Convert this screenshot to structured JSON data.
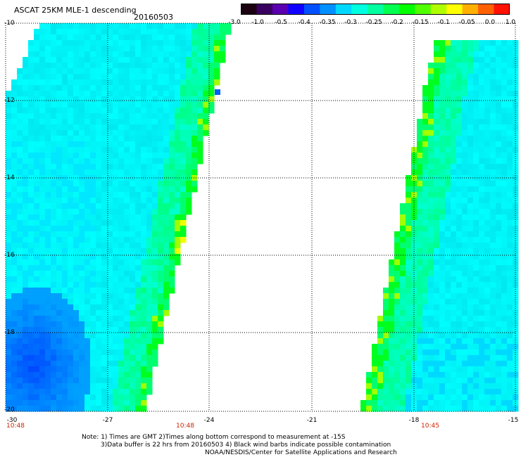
{
  "header": {
    "title": "ASCAT 25KM MLE-1 descending",
    "date": "20160503"
  },
  "colorbar": {
    "labels": [
      "-3.0",
      "-1.0",
      "-0.5",
      "-0.4",
      "-0.35",
      "-0.3",
      "-0.25",
      "-0.2",
      "-0.15",
      "-0.1",
      "-0.05",
      "0.0",
      "1.0"
    ],
    "colors": [
      "#1a0010",
      "#3a0060",
      "#5a00b0",
      "#1000ff",
      "#0050ff",
      "#0090ff",
      "#00d8ff",
      "#00ffe0",
      "#00ffa0",
      "#00ff50",
      "#00ff00",
      "#50ff00",
      "#b0ff00",
      "#ffff00",
      "#ffb000",
      "#ff6000",
      "#ff1000"
    ]
  },
  "axes": {
    "y_ticks": [
      "-10",
      "-12",
      "-14",
      "-16",
      "-18",
      "-20"
    ],
    "x_ticks": [
      "-30",
      "-27",
      "-24",
      "-21",
      "-18",
      "-15"
    ],
    "time_labels": [
      "10:48",
      "10:48",
      "10:45"
    ]
  },
  "note": {
    "line1": "Note: 1) Times are GMT 2)Times along bottom correspond to measurement at -15S",
    "line2": "3)Data buffer is 22 hrs from 20160503 4) Black wind barbs indicate possible contamination",
    "line3": "NOAA/NESDIS/Center for Satellite Applications and Research"
  },
  "swaths": [
    {
      "name": "left-swath",
      "lon_range": [
        -30,
        -24.3
      ],
      "lat_range": [
        -10,
        -20
      ]
    },
    {
      "name": "right-swath",
      "lon_range": [
        -19.2,
        -15
      ],
      "lat_range": [
        -11,
        -20
      ]
    }
  ]
}
